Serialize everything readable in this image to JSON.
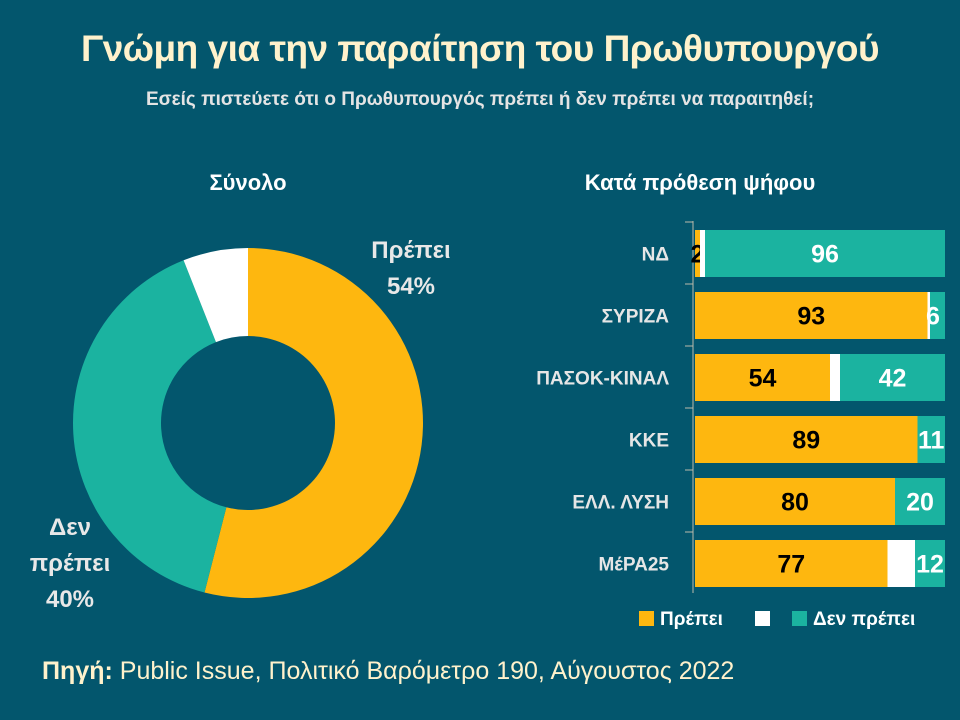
{
  "title": "Γνώμη για την παραίτηση του Πρωθυπουργού",
  "subtitle": "Εσείς πιστεύετε  ότι ο Πρωθυπουργός πρέπει ή δεν πρέπει να παραιτηθεί;",
  "source_label": "Πηγή:",
  "source_text": " Public Issue, Πολιτικό Βαρόμετρο 190, Αύγουστος 2022",
  "colors": {
    "background": "#03566d",
    "yes": "#feb70f",
    "no": "#1bb3a0",
    "other": "#ffffff",
    "title": "#fff2cc"
  },
  "chart_data": [
    {
      "type": "pie",
      "style": "donut",
      "title": "Σύνολο",
      "slices": [
        {
          "label": "Πρέπει",
          "value": 54,
          "data_label": "54%",
          "color": "#feb70f"
        },
        {
          "label": "Δεν πρέπει",
          "value": 40,
          "data_label": "40%",
          "color": "#1bb3a0"
        },
        {
          "label": "",
          "value": 6,
          "data_label": "",
          "color": "#ffffff"
        }
      ]
    },
    {
      "type": "bar",
      "orientation": "horizontal",
      "stacked": true,
      "title": "Κατά πρόθεση ψήφου",
      "categories": [
        "ΝΔ",
        "ΣΥΡΙΖΑ",
        "ΠΑΣΟΚ-ΚΙΝΑΛ",
        "ΚΚΕ",
        "ΕΛΛ. ΛΥΣΗ",
        "ΜέΡΑ25"
      ],
      "series": [
        {
          "name": "Πρέπει",
          "values": [
            2,
            93,
            54,
            89,
            80,
            77
          ],
          "color": "#feb70f"
        },
        {
          "name": "",
          "values": [
            2,
            1,
            4,
            0,
            0,
            11
          ],
          "color": "#ffffff",
          "labels_shown": false
        },
        {
          "name": "Δεν πρέπει",
          "values": [
            96,
            6,
            42,
            11,
            20,
            12
          ],
          "color": "#1bb3a0"
        }
      ],
      "xlim": [
        0,
        100
      ],
      "legend": "bottom"
    }
  ]
}
